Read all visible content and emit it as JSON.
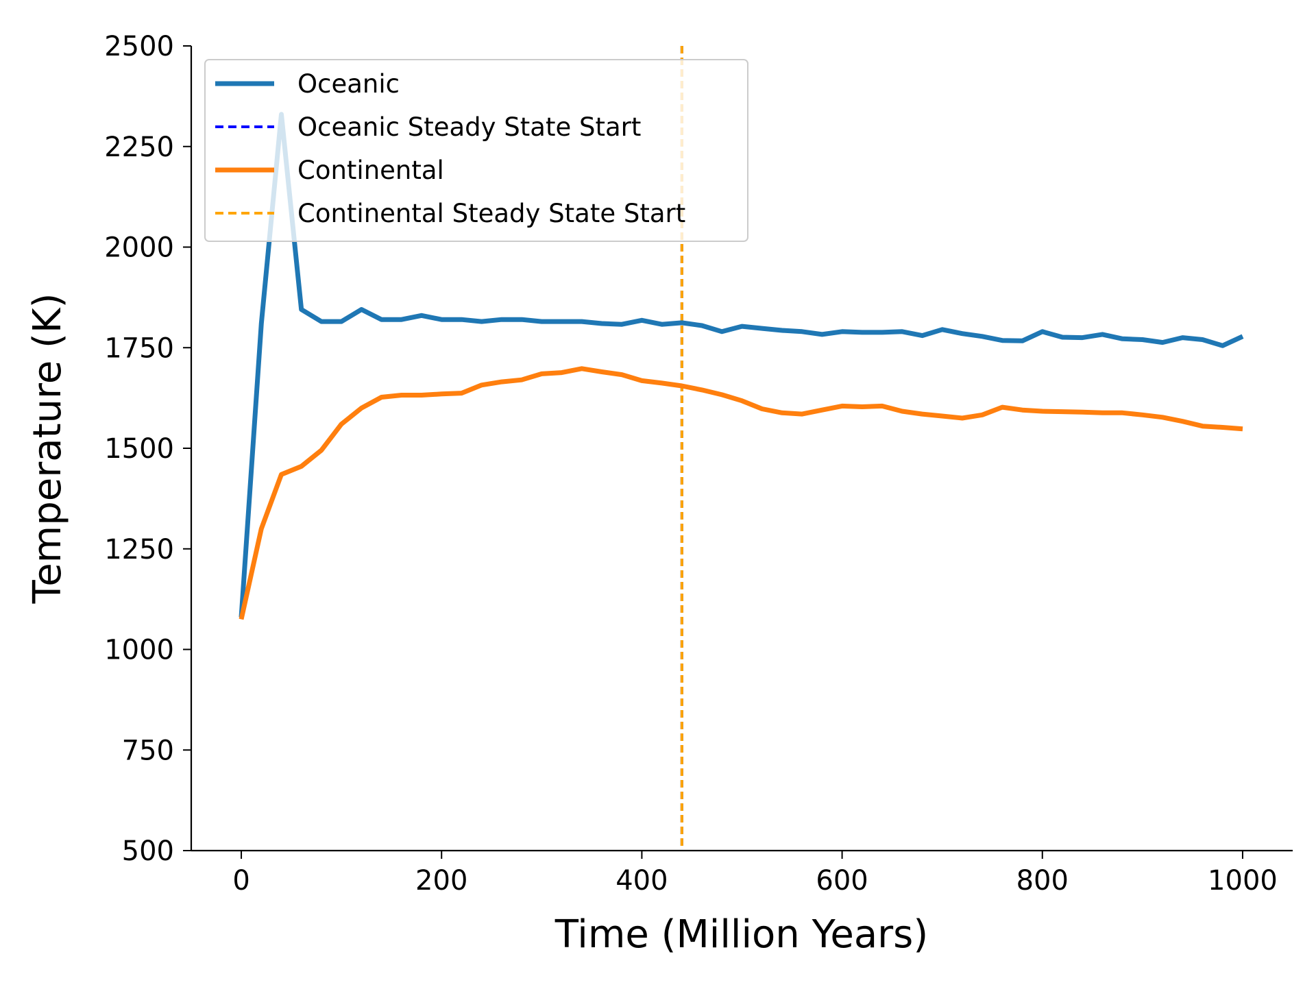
{
  "chart_data": {
    "type": "line",
    "title": "",
    "xlabel": "Time (Million Years)",
    "ylabel": "Temperature (K)",
    "xlim": [
      -50,
      1050
    ],
    "ylim": [
      500,
      2500
    ],
    "xticks": [
      0,
      200,
      400,
      600,
      800,
      1000
    ],
    "yticks": [
      500,
      750,
      1000,
      1250,
      1500,
      1750,
      2000,
      2250,
      2500
    ],
    "grid": false,
    "legend_position": "top-left",
    "x": [
      0,
      20,
      40,
      60,
      80,
      100,
      120,
      140,
      160,
      180,
      200,
      220,
      240,
      260,
      280,
      300,
      320,
      340,
      360,
      380,
      400,
      420,
      440,
      460,
      480,
      500,
      520,
      540,
      560,
      580,
      600,
      620,
      640,
      660,
      680,
      700,
      720,
      740,
      760,
      780,
      800,
      820,
      840,
      860,
      880,
      900,
      920,
      940,
      960,
      980,
      1000
    ],
    "series": [
      {
        "name": "Oceanic",
        "color": "#1f77b4",
        "style": "solid",
        "values": [
          1080,
          1810,
          2330,
          1845,
          1815,
          1815,
          1845,
          1820,
          1820,
          1830,
          1820,
          1820,
          1815,
          1820,
          1820,
          1815,
          1815,
          1815,
          1810,
          1808,
          1818,
          1808,
          1812,
          1805,
          1790,
          1803,
          1798,
          1793,
          1790,
          1783,
          1790,
          1788,
          1788,
          1790,
          1780,
          1795,
          1785,
          1778,
          1768,
          1767,
          1790,
          1776,
          1775,
          1783,
          1772,
          1770,
          1763,
          1775,
          1770,
          1755,
          1778
        ]
      },
      {
        "name": "Continental",
        "color": "#ff7f0e",
        "style": "solid",
        "values": [
          1075,
          1300,
          1435,
          1455,
          1495,
          1560,
          1600,
          1627,
          1632,
          1632,
          1635,
          1637,
          1657,
          1665,
          1670,
          1685,
          1688,
          1698,
          1690,
          1683,
          1668,
          1662,
          1655,
          1645,
          1633,
          1618,
          1598,
          1588,
          1585,
          1595,
          1605,
          1603,
          1605,
          1592,
          1585,
          1580,
          1575,
          1583,
          1602,
          1595,
          1592,
          1591,
          1590,
          1588,
          1588,
          1583,
          1577,
          1567,
          1555,
          1552,
          1548
        ]
      }
    ],
    "vlines": [
      {
        "name": "Oceanic Steady State Start",
        "x": 440,
        "color": "#0000ff",
        "style": "dashed"
      },
      {
        "name": "Continental Steady State Start",
        "x": 440,
        "color": "#ffa500",
        "style": "dashed"
      }
    ]
  }
}
